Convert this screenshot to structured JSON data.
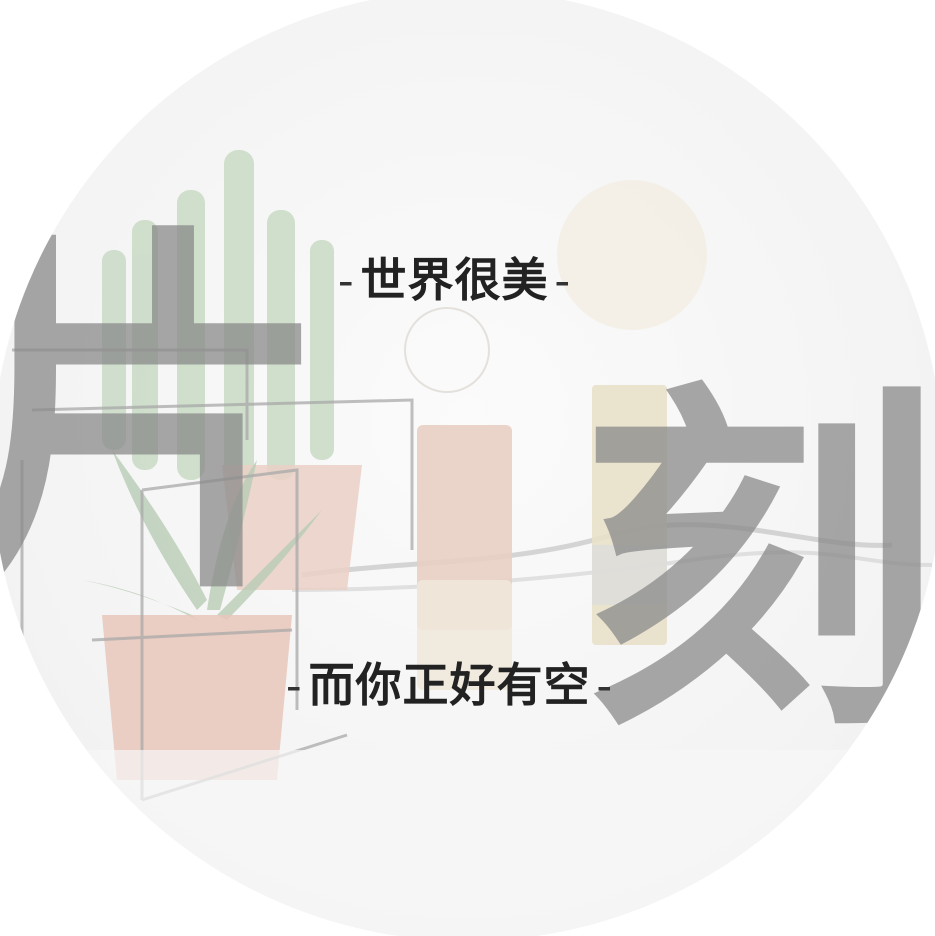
{
  "headline_top": {
    "dash_left": "-",
    "text": "世界很美",
    "dash_right": "-"
  },
  "headline_bottom": {
    "dash_left": "-",
    "text": "而你正好有空",
    "dash_right": "-"
  },
  "large_characters": {
    "first": "片",
    "second": "刻"
  },
  "colors": {
    "background": "#ffffff",
    "headline": "#222222",
    "large_character": "#8a8a8a",
    "cactus": "#c7d8c3",
    "pot": "#e8c9bd",
    "brass": "#e3dac2",
    "wire": "#b9b9b9"
  }
}
